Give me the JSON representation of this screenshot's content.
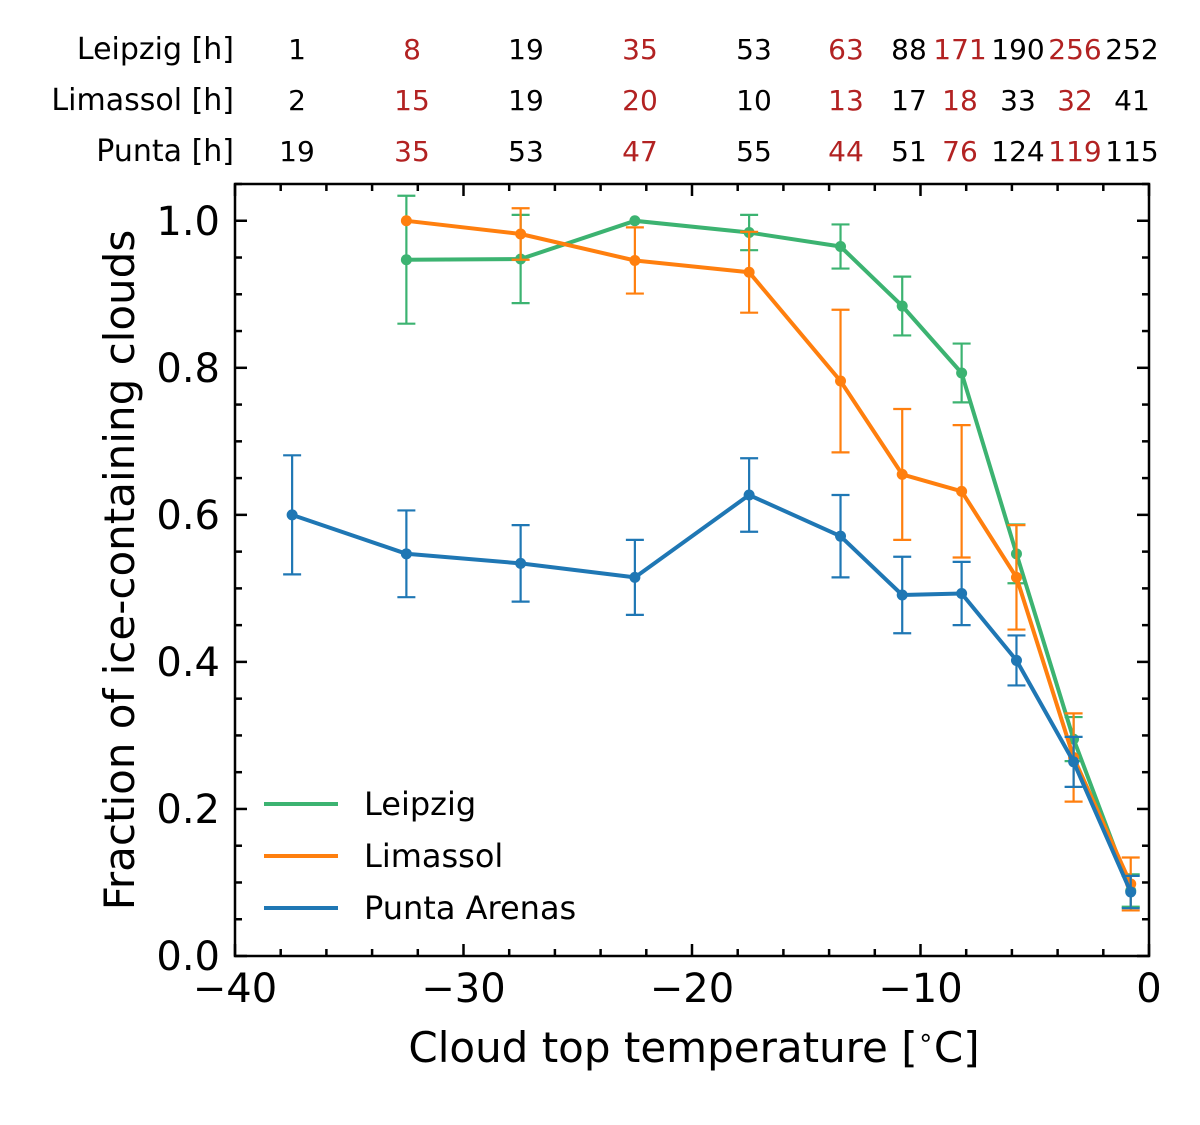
{
  "chart_data": {
    "type": "line",
    "xlabel": "Cloud top temperature [$^\\circ$C]",
    "xlabel_parts": [
      "Cloud top temperature [",
      "∘",
      "C]"
    ],
    "ylabel": "Fraction of ice-containing clouds",
    "xlim": [
      -40,
      0
    ],
    "ylim": [
      0,
      1.05
    ],
    "x_ticks": [
      -40,
      -30,
      -20,
      -10,
      0
    ],
    "x_tick_labels": [
      "−40",
      "−30",
      "−20",
      "−10",
      "0"
    ],
    "y_ticks": [
      0.0,
      0.2,
      0.4,
      0.6,
      0.8,
      1.0
    ],
    "y_tick_labels": [
      "0.0",
      "0.2",
      "0.4",
      "0.6",
      "0.8",
      "1.0"
    ],
    "grid": false,
    "legend_position": "lower-left",
    "colors": {
      "odd_count": "#b22222",
      "even_count": "#000000"
    },
    "series": [
      {
        "name": "Leipzig",
        "color": "#3cb371",
        "x": [
          -32.5,
          -27.5,
          -22.5,
          -17.5,
          -13.5,
          -10.8,
          -8.2,
          -5.8,
          -3.3,
          -0.8
        ],
        "y": [
          0.947,
          0.948,
          1.0,
          0.984,
          0.965,
          0.884,
          0.793,
          0.547,
          0.295,
          0.089
        ],
        "err": [
          0.087,
          0.06,
          0.0,
          0.024,
          0.03,
          0.04,
          0.04,
          0.04,
          0.03,
          0.022
        ]
      },
      {
        "name": "Limassol",
        "color": "#ff7f0e",
        "x": [
          -32.5,
          -27.5,
          -22.5,
          -17.5,
          -13.5,
          -10.8,
          -8.2,
          -5.8,
          -3.3,
          -0.8
        ],
        "y": [
          1.0,
          0.982,
          0.946,
          0.93,
          0.782,
          0.655,
          0.632,
          0.515,
          0.27,
          0.098
        ],
        "err": [
          0.0,
          0.035,
          0.045,
          0.055,
          0.097,
          0.089,
          0.09,
          0.071,
          0.06,
          0.036
        ]
      },
      {
        "name": "Punta Arenas",
        "color": "#1f77b4",
        "x": [
          -37.5,
          -32.5,
          -27.5,
          -22.5,
          -17.5,
          -13.5,
          -10.8,
          -8.2,
          -5.8,
          -3.3,
          -0.8
        ],
        "y": [
          0.6,
          0.547,
          0.534,
          0.515,
          0.627,
          0.571,
          0.491,
          0.493,
          0.402,
          0.264,
          0.087
        ],
        "err": [
          0.081,
          0.059,
          0.052,
          0.051,
          0.05,
          0.056,
          0.052,
          0.043,
          0.034,
          0.034,
          0.022
        ]
      }
    ],
    "count_table": {
      "row_labels": [
        "Leipzig [h]",
        "Limassol [h]",
        "Punta [h]"
      ],
      "rows": [
        [
          "1",
          "8",
          "19",
          "35",
          "53",
          "63",
          "88",
          "171",
          "190",
          "256",
          "252"
        ],
        [
          "2",
          "15",
          "19",
          "20",
          "10",
          "13",
          "17",
          "18",
          "33",
          "32",
          "41"
        ],
        [
          "19",
          "35",
          "53",
          "47",
          "55",
          "44",
          "51",
          "76",
          "124",
          "119",
          "115"
        ]
      ]
    }
  }
}
